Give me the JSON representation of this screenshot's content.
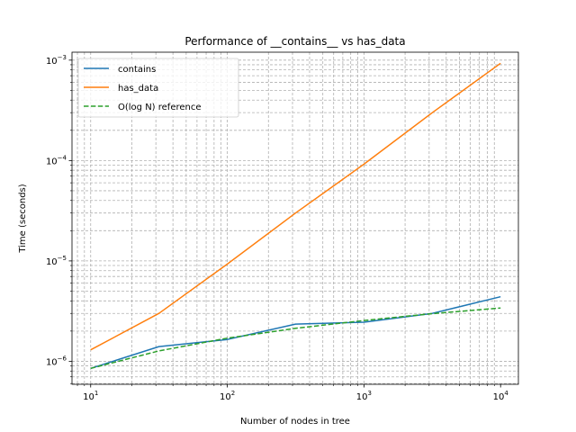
{
  "chart_data": {
    "type": "line",
    "title": "Performance of __contains__ vs has_data",
    "xlabel": "Number of nodes in tree",
    "ylabel": "Time (seconds)",
    "xscale": "log",
    "yscale": "log",
    "xlim": [
      7.3,
      13500
    ],
    "ylim": [
      5.9e-07,
      0.0012
    ],
    "grid": true,
    "legend_position": "top-left",
    "x_ticks": [
      {
        "base": "10",
        "exp": "1",
        "value": 10
      },
      {
        "base": "10",
        "exp": "2",
        "value": 100
      },
      {
        "base": "10",
        "exp": "3",
        "value": 1000
      },
      {
        "base": "10",
        "exp": "4",
        "value": 10000
      }
    ],
    "y_ticks": [
      {
        "base": "10",
        "exp": "−6",
        "value": 1e-06
      },
      {
        "base": "10",
        "exp": "−5",
        "value": 1e-05
      },
      {
        "base": "10",
        "exp": "−4",
        "value": 0.0001
      },
      {
        "base": "10",
        "exp": "−3",
        "value": 0.001
      }
    ],
    "x": [
      10,
      31.6,
      100,
      316,
      1000,
      3162,
      10000
    ],
    "series": [
      {
        "name": "contains",
        "color": "#1f77b4",
        "dash": "solid",
        "values": [
          8.5e-07,
          1.4e-06,
          1.65e-06,
          2.35e-06,
          2.45e-06,
          3e-06,
          4.4e-06
        ]
      },
      {
        "name": "has_data",
        "color": "#ff7f0e",
        "dash": "solid",
        "values": [
          1.3e-06,
          3e-06,
          9.3e-06,
          3e-05,
          9.2e-05,
          0.0003,
          0.00093
        ]
      },
      {
        "name": "O(log N) reference",
        "color": "#2ca02c",
        "dash": "dashed",
        "values": [
          8.5e-07,
          1.27e-06,
          1.7e-06,
          2.13e-06,
          2.55e-06,
          2.98e-06,
          3.4e-06
        ]
      }
    ]
  }
}
